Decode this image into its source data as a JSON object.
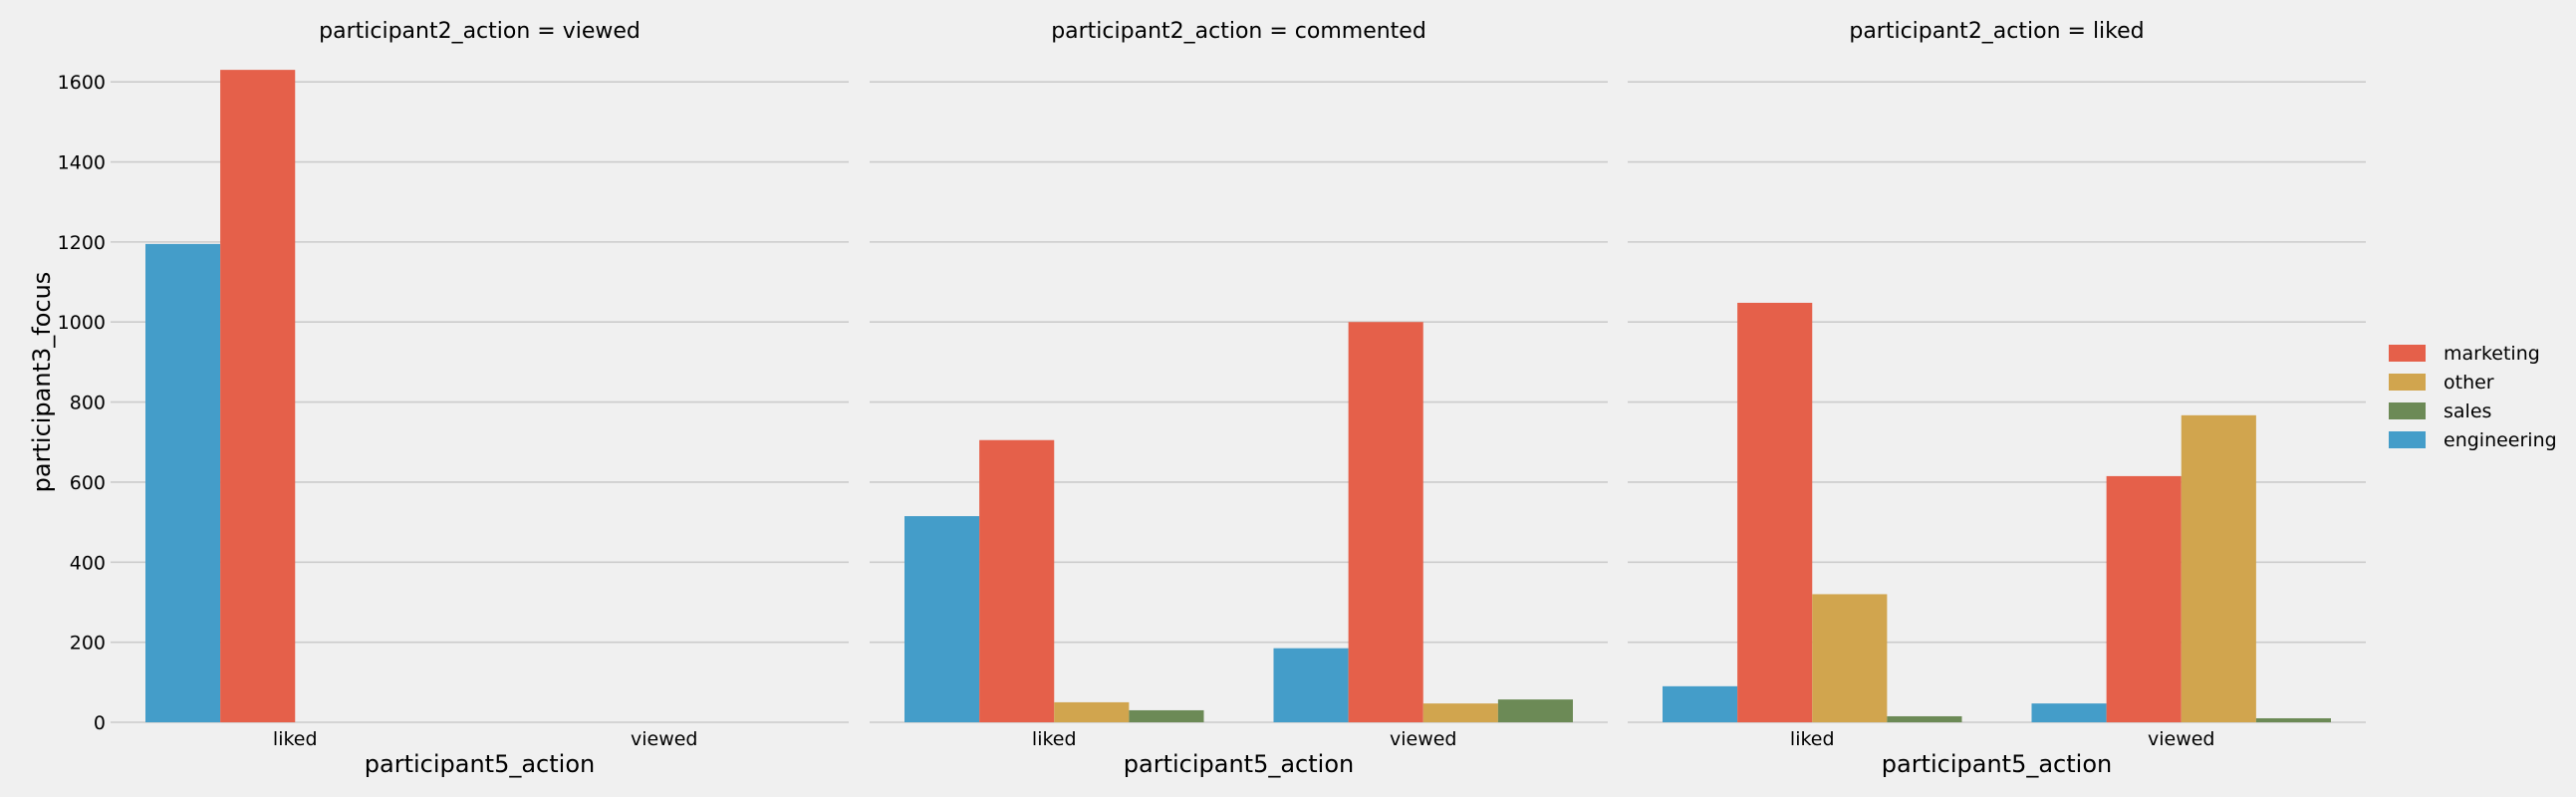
{
  "chart_data": {
    "type": "bar",
    "ylabel": "participant3_focus",
    "ylim": [
      0,
      1700
    ],
    "yticks": [
      0,
      200,
      400,
      600,
      800,
      1000,
      1200,
      1400,
      1600
    ],
    "grid": true,
    "legend_position": "right",
    "hue_order": [
      "engineering",
      "marketing",
      "other",
      "sales"
    ],
    "legend_order": [
      "marketing",
      "other",
      "sales",
      "engineering"
    ],
    "colors": {
      "engineering": "#449dc9",
      "marketing": "#e5604a",
      "other": "#d1a54e",
      "sales": "#6c8a56"
    },
    "panels": [
      {
        "title": "participant2_action = viewed",
        "xlabel": "participant5_action",
        "categories": [
          "liked",
          "viewed"
        ],
        "series": [
          {
            "name": "engineering",
            "values": [
              1195,
              0
            ]
          },
          {
            "name": "marketing",
            "values": [
              1630,
              0
            ]
          }
        ]
      },
      {
        "title": "participant2_action = commented",
        "xlabel": "participant5_action",
        "categories": [
          "liked",
          "viewed"
        ],
        "series": [
          {
            "name": "engineering",
            "values": [
              515,
              185
            ]
          },
          {
            "name": "marketing",
            "values": [
              705,
              1000
            ]
          },
          {
            "name": "other",
            "values": [
              50,
              47
            ]
          },
          {
            "name": "sales",
            "values": [
              30,
              57
            ]
          }
        ]
      },
      {
        "title": "participant2_action = liked",
        "xlabel": "participant5_action",
        "categories": [
          "liked",
          "viewed"
        ],
        "series": [
          {
            "name": "engineering",
            "values": [
              90,
              47
            ]
          },
          {
            "name": "marketing",
            "values": [
              1048,
              615
            ]
          },
          {
            "name": "other",
            "values": [
              320,
              767
            ]
          },
          {
            "name": "sales",
            "values": [
              15,
              10
            ]
          }
        ]
      }
    ]
  }
}
